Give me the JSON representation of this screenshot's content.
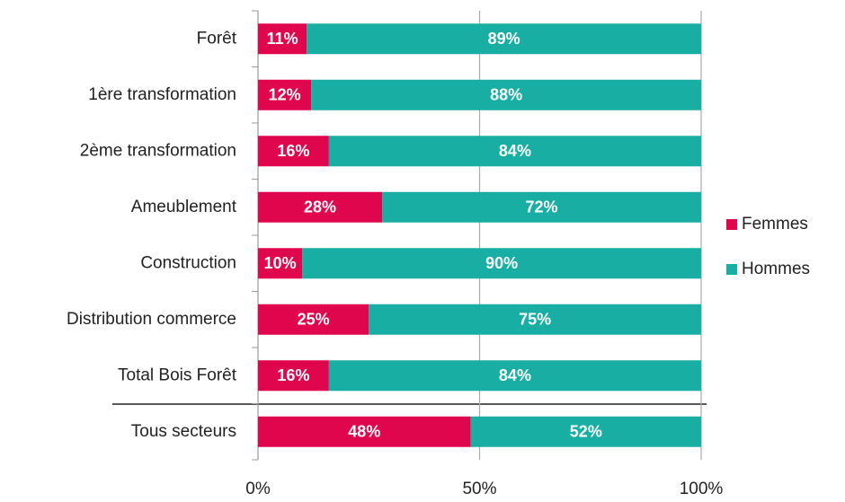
{
  "chart_data": {
    "type": "stacked_bar_horizontal",
    "categories": [
      "Forêt",
      "1ère transformation",
      "2ème transformation",
      "Ameublement",
      "Construction",
      "Distribution commerce",
      "Total Bois Forêt",
      "Tous secteurs"
    ],
    "series": [
      {
        "name": "Femmes",
        "color": "#e0064e",
        "values": [
          11,
          12,
          16,
          28,
          10,
          25,
          16,
          48
        ],
        "value_labels": [
          "11%",
          "12%",
          "16%",
          "28%",
          "10%",
          "25%",
          "16%",
          "48%"
        ]
      },
      {
        "name": "Hommes",
        "color": "#19aea3",
        "values": [
          89,
          88,
          84,
          72,
          90,
          75,
          84,
          52
        ],
        "value_labels": [
          "89%",
          "88%",
          "84%",
          "72%",
          "90%",
          "75%",
          "84%",
          "52%"
        ]
      }
    ],
    "xlim": [
      0,
      100
    ],
    "xticks": [
      {
        "value": 0,
        "label": "0%"
      },
      {
        "value": 50,
        "label": "50%"
      },
      {
        "value": 100,
        "label": "100%"
      }
    ],
    "grid": true,
    "legend": "right"
  }
}
